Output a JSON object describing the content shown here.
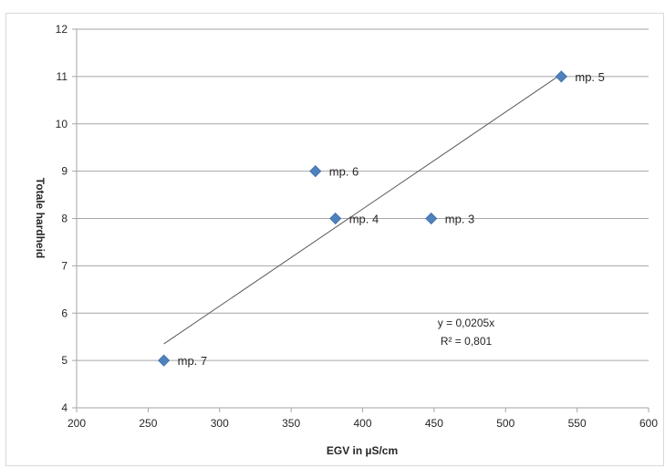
{
  "chart_data": {
    "type": "scatter",
    "title": "",
    "xlabel": "EGV in µS/cm",
    "ylabel": "Totale hardheid",
    "xlim": [
      200,
      600
    ],
    "ylim": [
      4,
      12
    ],
    "xticks": [
      200,
      250,
      300,
      350,
      400,
      450,
      500,
      550,
      600
    ],
    "yticks": [
      4,
      5,
      6,
      7,
      8,
      9,
      10,
      11,
      12
    ],
    "grid": "horizontal",
    "legend": "none",
    "marker": "diamond",
    "marker_color": "#4f81bd",
    "points": [
      {
        "x": 539,
        "y": 11,
        "label": "mp. 5"
      },
      {
        "x": 367,
        "y": 9,
        "label": "mp. 6"
      },
      {
        "x": 381,
        "y": 8,
        "label": "mp. 4"
      },
      {
        "x": 448,
        "y": 8,
        "label": "mp. 3"
      },
      {
        "x": 261,
        "y": 5,
        "label": "mp. 7"
      }
    ],
    "trendline": {
      "type": "linear",
      "slope": 0.0205,
      "intercept": 0,
      "x_range": [
        261,
        539
      ],
      "color": "#595959"
    },
    "annotations": [
      "y = 0,0205x",
      "R² = 0,801"
    ]
  }
}
